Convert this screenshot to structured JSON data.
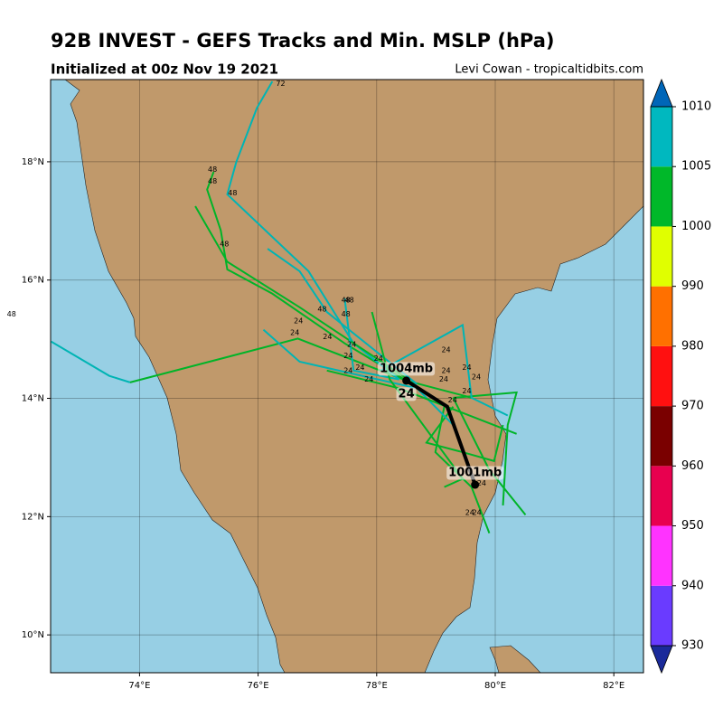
{
  "header": {
    "title": "92B INVEST - GEFS Tracks and Min. MSLP (hPa)",
    "subtitle": "Initialized at 00z Nov 19 2021",
    "credit": "Levi Cowan - tropicaltidbits.com"
  },
  "map": {
    "xlim": [
      72.5,
      82.5
    ],
    "ylim": [
      9.36,
      19.39
    ],
    "xticks": [
      {
        "value": 74,
        "label": "74°E"
      },
      {
        "value": 76,
        "label": "76°E"
      },
      {
        "value": 78,
        "label": "78°E"
      },
      {
        "value": 80,
        "label": "80°E"
      },
      {
        "value": 82,
        "label": "82°E"
      }
    ],
    "yticks": [
      {
        "value": 10,
        "label": "10°N"
      },
      {
        "value": 12,
        "label": "12°N"
      },
      {
        "value": 14,
        "label": "14°N"
      },
      {
        "value": 16,
        "label": "16°N"
      },
      {
        "value": 18,
        "label": "18°N"
      }
    ],
    "tracks": [
      {
        "color": "#00b4b4",
        "lon": [
          72.51,
          73.49,
          73.84
        ],
        "lat": [
          14.96,
          14.38,
          14.27
        ]
      },
      {
        "color": "#00b428",
        "lon": [
          73.84,
          76.67,
          78.5,
          79.6
        ],
        "lat": [
          14.27,
          15.01,
          14.3,
          14.01
        ]
      },
      {
        "color": "#00b428",
        "lon": [
          78.5,
          77.46,
          76.24,
          75.48,
          75.37,
          75.14,
          75.25
        ],
        "lat": [
          14.3,
          14.93,
          15.77,
          16.18,
          16.84,
          17.53,
          17.83
        ]
      },
      {
        "color": "#00b4b4",
        "lon": [
          78.38,
          77.61,
          76.85,
          75.48,
          75.63,
          75.98,
          76.24
        ],
        "lat": [
          14.32,
          14.93,
          16.15,
          17.45,
          17.99,
          18.91,
          19.36
        ]
      },
      {
        "color": "#00b4b4",
        "lon": [
          78.68,
          77.16,
          76.7,
          76.16
        ],
        "lat": [
          14.24,
          15.46,
          16.15,
          16.53
        ]
      },
      {
        "color": "#00b428",
        "lon": [
          78.53,
          76.7,
          75.48,
          74.94
        ],
        "lat": [
          14.32,
          15.54,
          16.31,
          17.25
        ]
      },
      {
        "color": "#00b428",
        "lon": [
          79.29,
          80.36,
          80.21,
          80.13
        ],
        "lat": [
          14.01,
          14.1,
          13.55,
          12.19
        ]
      },
      {
        "color": "#00b428",
        "lon": [
          79.29,
          79.9,
          80.51
        ],
        "lat": [
          14.01,
          12.79,
          12.03
        ]
      },
      {
        "color": "#00b428",
        "lon": [
          79.14,
          78.99,
          79.6,
          79.9
        ],
        "lat": [
          13.86,
          13.09,
          12.5,
          11.72
        ]
      },
      {
        "color": "#00b4b4",
        "lon": [
          78.07,
          79.45,
          79.6,
          80.21
        ],
        "lat": [
          14.47,
          15.24,
          14.01,
          13.71
        ]
      },
      {
        "color": "#00b428",
        "lon": [
          79.29,
          78.84,
          79.45,
          79.98,
          80.13
        ],
        "lat": [
          13.86,
          13.25,
          13.09,
          12.94,
          13.55
        ]
      },
      {
        "color": "#00b4b4",
        "lon": [
          76.09,
          76.7,
          78.68,
          79.29
        ],
        "lat": [
          15.16,
          14.62,
          14.17,
          13.55
        ]
      },
      {
        "color": "#00b428",
        "lon": [
          77.16,
          78.38,
          80.36
        ],
        "lat": [
          14.47,
          14.17,
          13.4
        ]
      },
      {
        "color": "#00b4b4",
        "lon": [
          77.46,
          77.61,
          78.38
        ],
        "lat": [
          15.69,
          14.47,
          14.32
        ]
      },
      {
        "color": "#00b428",
        "lon": [
          77.92,
          78.22,
          79.45,
          79.14
        ],
        "lat": [
          15.46,
          14.32,
          12.64,
          12.5
        ]
      }
    ],
    "hour_labels": [
      {
        "text": "72",
        "lon": 76.38,
        "lat": 19.32
      },
      {
        "text": "48",
        "lon": 75.23,
        "lat": 17.87
      },
      {
        "text": "48",
        "lon": 75.23,
        "lat": 17.67
      },
      {
        "text": "48",
        "lon": 75.57,
        "lat": 17.47
      },
      {
        "text": "48",
        "lon": 75.43,
        "lat": 16.61
      },
      {
        "text": "48",
        "lon": 77.08,
        "lat": 15.51
      },
      {
        "text": "48",
        "lon": 77.48,
        "lat": 15.66
      },
      {
        "text": "48",
        "lon": 77.54,
        "lat": 15.66
      },
      {
        "text": "48",
        "lon": 77.48,
        "lat": 15.42
      },
      {
        "text": "48",
        "lon": 71.84,
        "lat": 15.42
      },
      {
        "text": "24",
        "lon": 76.68,
        "lat": 15.31
      },
      {
        "text": "24",
        "lon": 76.62,
        "lat": 15.11
      },
      {
        "text": "24",
        "lon": 77.17,
        "lat": 15.04
      },
      {
        "text": "24",
        "lon": 77.58,
        "lat": 14.91
      },
      {
        "text": "24",
        "lon": 77.52,
        "lat": 14.72
      },
      {
        "text": "24",
        "lon": 77.72,
        "lat": 14.52
      },
      {
        "text": "24",
        "lon": 77.52,
        "lat": 14.47
      },
      {
        "text": "24",
        "lon": 77.87,
        "lat": 14.32
      },
      {
        "text": "24",
        "lon": 78.03,
        "lat": 14.67
      },
      {
        "text": "24",
        "lon": 79.17,
        "lat": 14.82
      },
      {
        "text": "24",
        "lon": 79.52,
        "lat": 14.52
      },
      {
        "text": "24",
        "lon": 79.68,
        "lat": 14.36
      },
      {
        "text": "24",
        "lon": 79.17,
        "lat": 14.47
      },
      {
        "text": "24",
        "lon": 79.13,
        "lat": 14.32
      },
      {
        "text": "24",
        "lon": 79.52,
        "lat": 14.12
      },
      {
        "text": "24",
        "lon": 79.28,
        "lat": 13.97
      },
      {
        "text": "24",
        "lon": 79.77,
        "lat": 12.56
      },
      {
        "text": "24",
        "lon": 79.57,
        "lat": 12.07
      },
      {
        "text": "24",
        "lon": 79.69,
        "lat": 12.07
      }
    ],
    "mean_track": {
      "color": "#000000",
      "points": [
        {
          "lon": 78.5,
          "lat": 14.3,
          "labels": [
            "1004mb",
            "24"
          ]
        },
        {
          "lon": 79.19,
          "lat": 13.86
        },
        {
          "lon": 79.66,
          "lat": 12.54,
          "labels": [
            "1001mb"
          ]
        }
      ]
    }
  },
  "colorbar": {
    "ticks": [
      930,
      940,
      950,
      960,
      970,
      980,
      990,
      1000,
      1005,
      1010
    ],
    "colors": [
      "#1a2a9a",
      "#6a3bff",
      "#ff33ff",
      "#e8004f",
      "#7a0000",
      "#ff1010",
      "#ff7000",
      "#e0ff00",
      "#00b829",
      "#00b8bf",
      "#0066b8"
    ]
  }
}
